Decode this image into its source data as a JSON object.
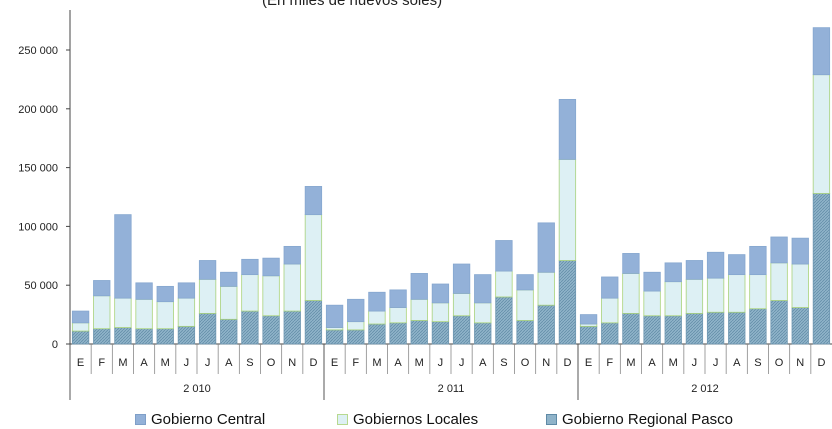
{
  "chart_data": {
    "type": "bar",
    "stacked": true,
    "subtitle": "(En miles de nuevos soles)",
    "month_labels": [
      "E",
      "F",
      "M",
      "A",
      "M",
      "J",
      "J",
      "A",
      "S",
      "O",
      "N",
      "D",
      "E",
      "F",
      "M",
      "A",
      "M",
      "J",
      "J",
      "A",
      "S",
      "O",
      "N",
      "D",
      "E",
      "F",
      "M",
      "A",
      "M",
      "J",
      "J",
      "A",
      "S",
      "O",
      "N",
      "D"
    ],
    "year_labels": [
      "2 010",
      "2 011",
      "2 012"
    ],
    "y_ticks": [
      "0",
      "50 000",
      "100 000",
      "150 000",
      "200 000",
      "250 000"
    ],
    "ylim": [
      0,
      275000
    ],
    "series": [
      {
        "name": "Gobierno Regional Pasco",
        "color": "#8fb3c9",
        "values": [
          11000,
          13000,
          14000,
          13000,
          13000,
          15000,
          26000,
          21000,
          28000,
          24000,
          28000,
          37000,
          12000,
          12000,
          17000,
          18000,
          20000,
          19000,
          24000,
          18000,
          40000,
          20000,
          33000,
          71000,
          15000,
          18000,
          26000,
          24000,
          24000,
          26000,
          27000,
          27000,
          30000,
          37000,
          31000,
          128000
        ]
      },
      {
        "name": "Gobiernos Locales",
        "color": "#ddf0f4",
        "values": [
          7000,
          28000,
          25000,
          25000,
          23000,
          24000,
          29000,
          28000,
          31000,
          34000,
          40000,
          73000,
          2000,
          7000,
          11000,
          13000,
          18000,
          16000,
          19000,
          17000,
          22000,
          26000,
          28000,
          86000,
          2000,
          21000,
          34000,
          21000,
          29000,
          29000,
          29000,
          32000,
          29000,
          32000,
          37000,
          101000
        ]
      },
      {
        "name": "Gobierno Central",
        "color": "#93b1d8",
        "values": [
          10000,
          13000,
          71000,
          14000,
          13000,
          13000,
          16000,
          12000,
          13000,
          15000,
          15000,
          24000,
          19000,
          19000,
          16000,
          15000,
          22000,
          16000,
          25000,
          24000,
          26000,
          13000,
          42000,
          51000,
          8000,
          18000,
          17000,
          16000,
          16000,
          16000,
          22000,
          17000,
          24000,
          22000,
          22000,
          40000
        ]
      }
    ]
  }
}
